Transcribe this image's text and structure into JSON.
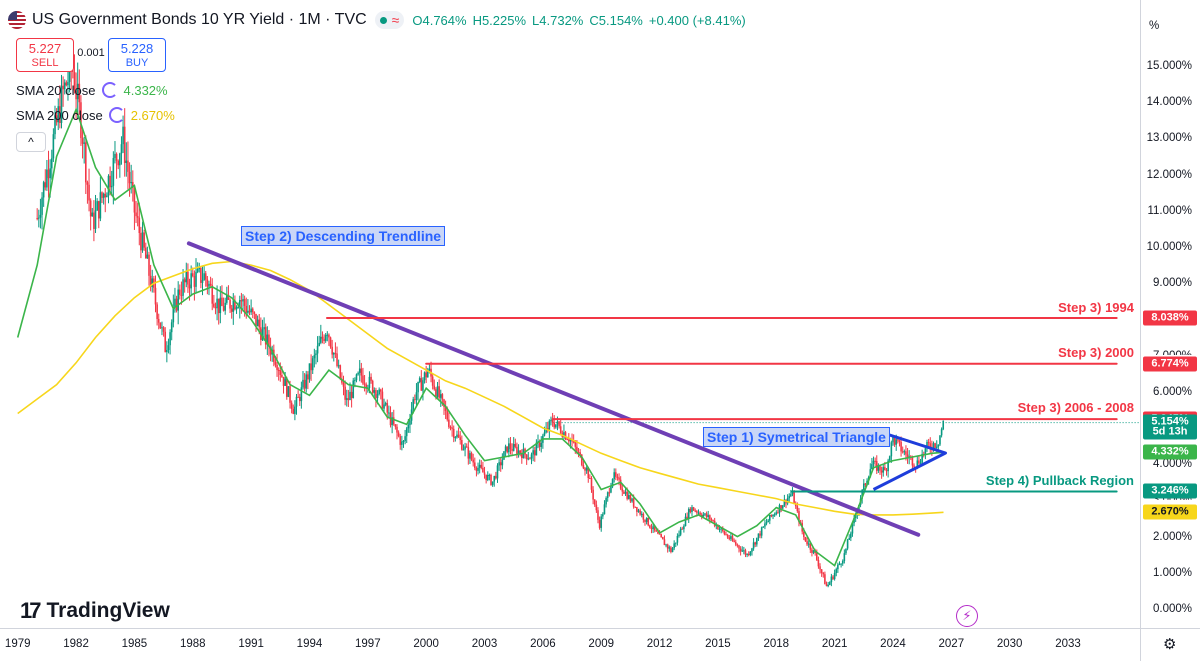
{
  "header": {
    "symbol": "US Government Bonds 10 YR Yield · 1M · TVC",
    "flag_icon": "us-flag-icon",
    "status_wave": "≈",
    "ohlc": {
      "open": "O4.764%",
      "high": "H5.225%",
      "low": "L4.732%",
      "close": "C5.154%",
      "change": "+0.400 (+8.41%)"
    }
  },
  "trade": {
    "sell_price": "5.227",
    "sell_label": "SELL",
    "spread": "0.001",
    "buy_price": "5.228",
    "buy_label": "BUY"
  },
  "indicators": [
    {
      "name": "SMA 20 close",
      "value": "4.332%",
      "color": "#3bb54a"
    },
    {
      "name": "SMA 200 close",
      "value": "2.670%",
      "color": "#f7d61b"
    }
  ],
  "collapse_icon": "^",
  "price_axis": {
    "unit": "%",
    "ticks": [
      "15.000%",
      "14.000%",
      "13.000%",
      "12.000%",
      "11.000%",
      "10.000%",
      "9.000%",
      "6.000%",
      "5.000%",
      "4.000%",
      "2.000%",
      "1.000%",
      "0.000%"
    ],
    "partial_ticks": [
      "7.000%",
      "3.000%"
    ],
    "badges": [
      {
        "text": "8.038%",
        "color": "#f23645",
        "value": 8.038
      },
      {
        "text": "6.774%",
        "color": "#f23645",
        "value": 6.774
      },
      {
        "text": "5.245%",
        "color": "#f23645",
        "value": 5.245
      },
      {
        "text": "5.154%",
        "color": "#089981",
        "value": 5.154
      },
      {
        "text": "5d 13h",
        "color": "#089981",
        "value": 4.9
      },
      {
        "text": "4.332%",
        "color": "#3bb54a",
        "value": 4.332
      },
      {
        "text": "3.246%",
        "color": "#089981",
        "value": 3.246
      },
      {
        "text": "2.670%",
        "color": "#f7d61b",
        "value": 2.67
      }
    ]
  },
  "time_axis": {
    "ticks": [
      "1979",
      "1982",
      "1985",
      "1988",
      "1991",
      "1994",
      "1997",
      "2000",
      "2003",
      "2006",
      "2009",
      "2012",
      "2015",
      "2018",
      "2021",
      "2024",
      "2027",
      "2030",
      "2033"
    ]
  },
  "annotations": {
    "trendline_label": "Step 2) Descending Trendline",
    "triangle_label": "Step 1) Symetrical Triangle",
    "r1994": "Step 3) 1994",
    "r2000": "Step 3) 2000",
    "r2006": "Step 3) 2006 - 2008",
    "support": "Step 4) Pullback Region"
  },
  "branding": {
    "logo_mark": "17",
    "logo_text": "TradingView",
    "flash_icon": "⚡"
  },
  "settings_icon": "⚙",
  "chart_data": {
    "type": "line",
    "title": "US Government Bonds 10 YR Yield · 1M · TVC",
    "ylabel": "%",
    "ylim": [
      -0.4,
      16.3
    ],
    "xlim": [
      1978.5,
      2035.5
    ],
    "grid": false,
    "series": [
      {
        "name": "US Government Bonds 10 YR Yield",
        "color": "#089981",
        "x": [
          1980.0,
          1980.7,
          1981.3,
          1981.8,
          1982.3,
          1982.8,
          1983.5,
          1984.4,
          1985.0,
          1985.7,
          1986.6,
          1987.3,
          1987.8,
          1988.6,
          1989.4,
          1990.4,
          1991.3,
          1992.3,
          1993.2,
          1993.8,
          1994.9,
          1995.9,
          1996.6,
          1997.5,
          1998.8,
          1999.4,
          2000.1,
          2001.3,
          2002.5,
          2003.4,
          2004.2,
          2005.4,
          2006.5,
          2007.4,
          2008.3,
          2008.9,
          2009.6,
          2010.8,
          2011.8,
          2012.6,
          2013.6,
          2014.6,
          2015.3,
          2016.5,
          2017.5,
          2018.8,
          2019.4,
          2020.0,
          2020.6,
          2021.5,
          2022.4,
          2022.9,
          2023.6,
          2024.0,
          2024.6,
          2025.2,
          2025.8,
          2026.3,
          2026.6
        ],
        "values": [
          10.8,
          12.6,
          14.2,
          15.0,
          13.3,
          10.6,
          11.6,
          13.0,
          11.0,
          9.4,
          7.2,
          8.8,
          9.1,
          9.2,
          8.3,
          8.6,
          7.9,
          6.9,
          5.5,
          6.3,
          7.8,
          5.7,
          6.5,
          6.0,
          4.5,
          5.9,
          6.6,
          5.0,
          4.0,
          3.5,
          4.5,
          4.2,
          5.2,
          4.7,
          3.8,
          2.3,
          3.7,
          2.8,
          2.1,
          1.6,
          2.8,
          2.5,
          2.1,
          1.5,
          2.4,
          3.2,
          2.0,
          1.5,
          0.6,
          1.5,
          3.2,
          4.0,
          3.8,
          4.7,
          4.3,
          4.0,
          4.5,
          4.6,
          5.15
        ]
      },
      {
        "name": "SMA 20 close",
        "color": "#3bb54a",
        "x": [
          1979.0,
          1980.0,
          1981.0,
          1982.0,
          1983.0,
          1984.0,
          1985.0,
          1986.0,
          1987.0,
          1988.0,
          1989.0,
          1990.0,
          1991.0,
          1992.0,
          1993.0,
          1994.0,
          1995.0,
          1996.0,
          1997.0,
          1998.0,
          1999.0,
          2000.0,
          2001.0,
          2002.0,
          2003.0,
          2004.0,
          2005.0,
          2006.0,
          2007.0,
          2008.0,
          2009.0,
          2010.0,
          2011.0,
          2012.0,
          2013.0,
          2014.0,
          2015.0,
          2016.0,
          2017.0,
          2018.0,
          2019.0,
          2020.0,
          2021.0,
          2022.0,
          2023.0,
          2024.0,
          2025.0,
          2026.0,
          2026.6
        ],
        "values": [
          7.5,
          9.5,
          12.5,
          13.8,
          12.2,
          11.3,
          11.7,
          9.5,
          8.3,
          8.7,
          8.9,
          8.6,
          8.0,
          7.2,
          6.2,
          5.9,
          6.6,
          6.2,
          6.1,
          5.3,
          5.1,
          6.1,
          5.6,
          4.8,
          4.1,
          4.2,
          4.3,
          4.7,
          4.7,
          4.2,
          3.3,
          3.5,
          2.9,
          2.1,
          2.4,
          2.6,
          2.3,
          2.0,
          2.3,
          2.8,
          2.6,
          1.6,
          1.2,
          2.5,
          3.9,
          4.1,
          4.2,
          4.3,
          4.33
        ]
      },
      {
        "name": "SMA 200 close",
        "color": "#f7d61b",
        "x": [
          1979.0,
          1980.0,
          1981.0,
          1982.0,
          1983.0,
          1984.0,
          1985.0,
          1986.0,
          1987.0,
          1988.0,
          1989.0,
          1990.0,
          1991.0,
          1992.0,
          1993.0,
          1994.0,
          1995.0,
          1996.0,
          1997.0,
          1998.0,
          1999.0,
          2000.0,
          2001.0,
          2002.0,
          2003.0,
          2004.0,
          2005.0,
          2006.0,
          2007.0,
          2008.0,
          2009.0,
          2010.0,
          2011.0,
          2012.0,
          2013.0,
          2014.0,
          2015.0,
          2016.0,
          2017.0,
          2018.0,
          2019.0,
          2020.0,
          2021.0,
          2022.0,
          2023.0,
          2024.0,
          2025.0,
          2026.0,
          2026.6
        ],
        "values": [
          5.4,
          5.8,
          6.2,
          6.8,
          7.5,
          8.1,
          8.6,
          9.0,
          9.2,
          9.4,
          9.55,
          9.6,
          9.5,
          9.35,
          9.1,
          8.8,
          8.4,
          8.0,
          7.6,
          7.2,
          6.9,
          6.6,
          6.3,
          6.1,
          5.85,
          5.6,
          5.3,
          5.0,
          4.8,
          4.55,
          4.3,
          4.1,
          3.9,
          3.75,
          3.6,
          3.45,
          3.35,
          3.25,
          3.15,
          3.05,
          2.9,
          2.8,
          2.7,
          2.62,
          2.6,
          2.6,
          2.62,
          2.65,
          2.67
        ]
      }
    ],
    "drawings": [
      {
        "label": "Step 2) Descending Trendline",
        "color": "#6f3fb5",
        "x": [
          1987.8,
          2025.3
        ],
        "y": [
          10.1,
          2.05
        ]
      },
      {
        "label": "Step 3) 1994",
        "color": "#f23645",
        "x": [
          1994.9,
          2035.5
        ],
        "y": [
          8.038,
          8.038
        ]
      },
      {
        "label": "Step 3) 2000",
        "color": "#f23645",
        "x": [
          2000.0,
          2035.5
        ],
        "y": [
          6.774,
          6.774
        ]
      },
      {
        "label": "Step 3) 2006 - 2008",
        "color": "#f23645",
        "x": [
          2006.5,
          2035.5
        ],
        "y": [
          5.245,
          5.245
        ]
      },
      {
        "label": "Step 4) Pullback Region",
        "color": "#089981",
        "x": [
          2018.8,
          2035.5
        ],
        "y": [
          3.246,
          3.246
        ]
      },
      {
        "label": "Step 1) Symetrical Triangle",
        "color": "#1e3ddb",
        "x": [
          2023.0,
          2026.7,
          2023.0
        ],
        "y": [
          4.95,
          4.31,
          3.3
        ]
      }
    ]
  }
}
